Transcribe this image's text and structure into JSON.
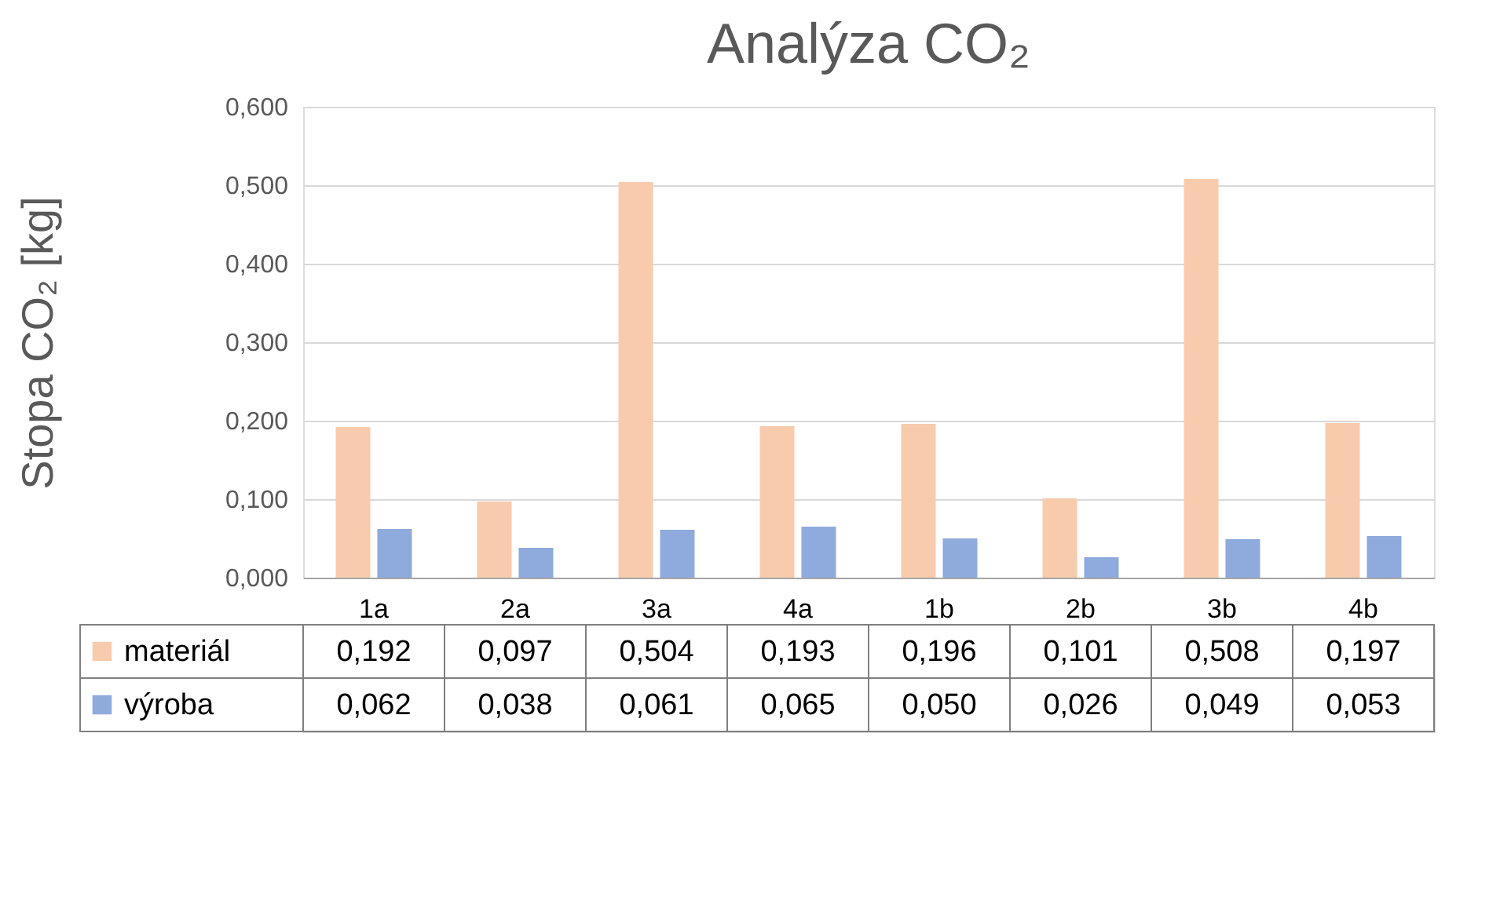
{
  "chart_data": {
    "type": "bar",
    "title": "Analýza CO₂",
    "ylabel": "Stopa CO₂ [kg]",
    "categories": [
      "1a",
      "2a",
      "3a",
      "4a",
      "1b",
      "2b",
      "3b",
      "4b"
    ],
    "series": [
      {
        "name": "materiál",
        "color": "#f8cbad",
        "values": [
          0.192,
          0.097,
          0.504,
          0.193,
          0.196,
          0.101,
          0.508,
          0.197
        ],
        "value_labels": [
          "0,192",
          "0,097",
          "0,504",
          "0,193",
          "0,196",
          "0,101",
          "0,508",
          "0,197"
        ]
      },
      {
        "name": "výroba",
        "color": "#8faadc",
        "values": [
          0.062,
          0.038,
          0.061,
          0.065,
          0.05,
          0.026,
          0.049,
          0.053
        ],
        "value_labels": [
          "0,062",
          "0,038",
          "0,061",
          "0,065",
          "0,050",
          "0,026",
          "0,049",
          "0,053"
        ]
      }
    ],
    "ylim": [
      0,
      0.6
    ],
    "yticks": [
      {
        "value": 0,
        "label": "0,000"
      },
      {
        "value": 0.1,
        "label": "0,100"
      },
      {
        "value": 0.2,
        "label": "0,200"
      },
      {
        "value": 0.3,
        "label": "0,300"
      },
      {
        "value": 0.4,
        "label": "0,400"
      },
      {
        "value": 0.5,
        "label": "0,500"
      },
      {
        "value": 0.6,
        "label": "0,600"
      }
    ],
    "grid": "y",
    "legend": "bottom"
  }
}
